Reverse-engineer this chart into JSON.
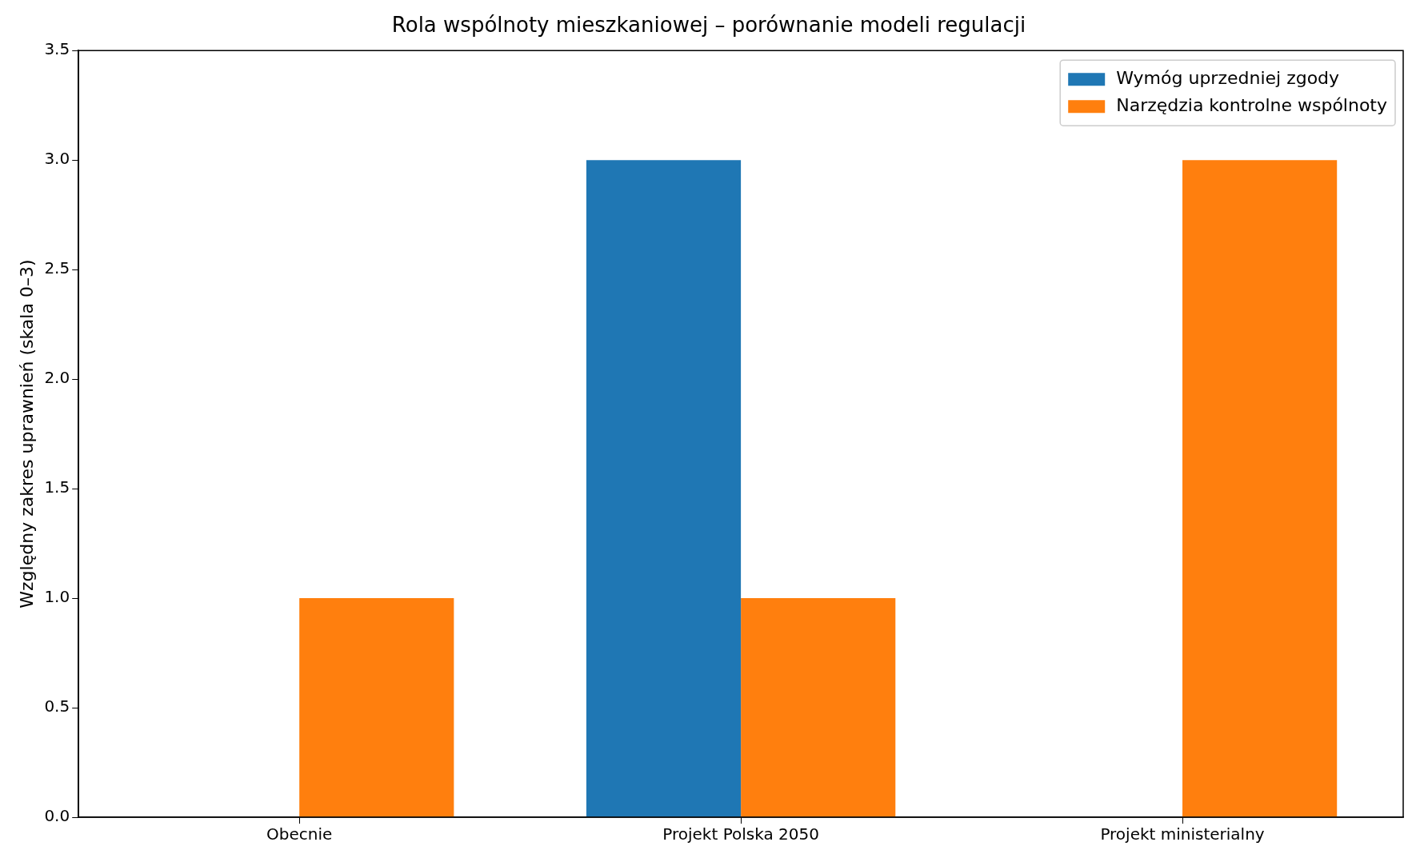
{
  "chart_data": {
    "type": "bar",
    "title": "Rola wspólnoty mieszkaniowej – porównanie modeli regulacji",
    "ylabel": "Względny zakres uprawnień (skala 0–3)",
    "categories": [
      "Obecnie",
      "Projekt Polska 2050",
      "Projekt ministerialny"
    ],
    "series": [
      {
        "name": "Wymóg uprzedniej zgody",
        "color": "#1f77b4",
        "values": [
          0,
          3,
          0
        ]
      },
      {
        "name": "Narzędzia kontrolne wspólnoty",
        "color": "#ff7f0e",
        "values": [
          1,
          1,
          3
        ]
      }
    ],
    "ylim": [
      0,
      3.5
    ],
    "yticks": [
      {
        "value": 0,
        "label": "0.0"
      },
      {
        "value": 0.5,
        "label": "0.5"
      },
      {
        "value": 1,
        "label": "1.0"
      },
      {
        "value": 1.5,
        "label": "1.5"
      },
      {
        "value": 2,
        "label": "2.0"
      },
      {
        "value": 2.5,
        "label": "2.5"
      },
      {
        "value": 3,
        "label": "3.0"
      },
      {
        "value": 3.5,
        "label": "3.5"
      }
    ],
    "grid": false,
    "legend": "top right"
  }
}
